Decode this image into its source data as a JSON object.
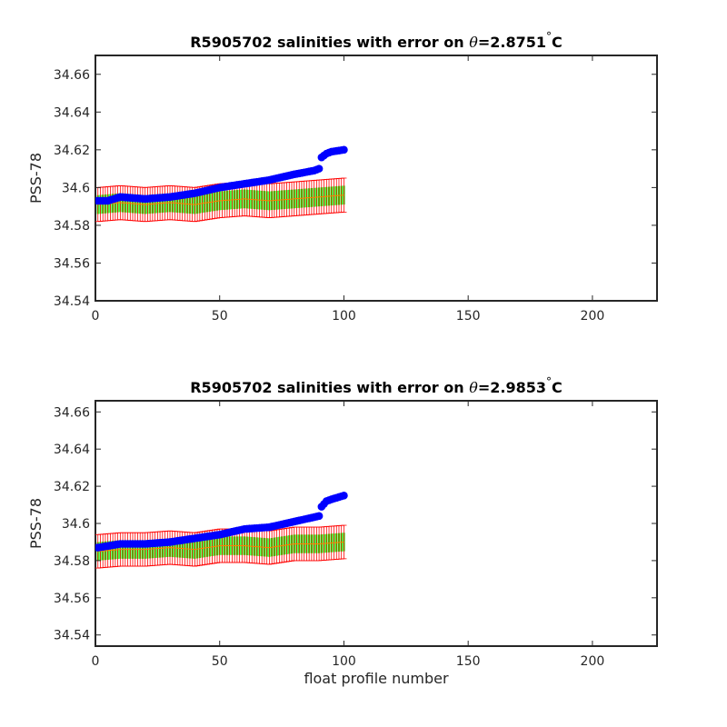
{
  "chart_data": [
    {
      "type": "scatter",
      "title_prefix": "R5905702 salinities with error on ",
      "title_symbol": "θ",
      "title_value": "=2.8751",
      "title_degree": "°",
      "title_unit": "C",
      "xlabel": "",
      "ylabel": "PSS-78",
      "xlim": [
        0,
        226
      ],
      "ylim": [
        34.54,
        34.67
      ],
      "xticks": [
        0,
        50,
        100,
        150,
        200
      ],
      "xtick_labels": [
        "0",
        "50",
        "100",
        "150",
        "200"
      ],
      "yticks": [
        34.54,
        34.56,
        34.58,
        34.6,
        34.62,
        34.64,
        34.66
      ],
      "ytick_labels": [
        "34.54",
        "34.56",
        "34.58",
        "34.6",
        "34.62",
        "34.64",
        "34.66"
      ],
      "grid": false,
      "profile_range": [
        1,
        100
      ],
      "blue_keypoints": [
        [
          1,
          34.593
        ],
        [
          5,
          34.593
        ],
        [
          10,
          34.595
        ],
        [
          20,
          34.594
        ],
        [
          30,
          34.595
        ],
        [
          40,
          34.597
        ],
        [
          50,
          34.6
        ],
        [
          60,
          34.602
        ],
        [
          70,
          34.604
        ],
        [
          80,
          34.607
        ],
        [
          88,
          34.609
        ],
        [
          90,
          34.61
        ],
        [
          91,
          34.616
        ],
        [
          93,
          34.618
        ],
        [
          95,
          34.619
        ],
        [
          100,
          34.62
        ]
      ],
      "mapped_keypoints": [
        [
          1,
          34.591
        ],
        [
          10,
          34.592
        ],
        [
          20,
          34.591
        ],
        [
          30,
          34.592
        ],
        [
          40,
          34.591
        ],
        [
          50,
          34.593
        ],
        [
          60,
          34.594
        ],
        [
          70,
          34.593
        ],
        [
          80,
          34.594
        ],
        [
          90,
          34.595
        ],
        [
          100,
          34.596
        ]
      ],
      "error_halfwidth": 0.009,
      "green_halfwidth": 0.005,
      "colors": {
        "calibrated": "#0000ff",
        "error": "#ff0000",
        "band": "#00ff00",
        "mapped_line": "#ff7f00"
      }
    },
    {
      "type": "scatter",
      "title_prefix": "R5905702 salinities with error on ",
      "title_symbol": "θ",
      "title_value": "=2.9853",
      "title_degree": "°",
      "title_unit": "C",
      "xlabel": "float profile number",
      "ylabel": "PSS-78",
      "xlim": [
        0,
        226
      ],
      "ylim": [
        34.534,
        34.666
      ],
      "xticks": [
        0,
        50,
        100,
        150,
        200
      ],
      "xtick_labels": [
        "0",
        "50",
        "100",
        "150",
        "200"
      ],
      "yticks": [
        34.54,
        34.56,
        34.58,
        34.6,
        34.62,
        34.64,
        34.66
      ],
      "ytick_labels": [
        "34.54",
        "34.56",
        "34.58",
        "34.6",
        "34.62",
        "34.64",
        "34.66"
      ],
      "grid": false,
      "profile_range": [
        1,
        100
      ],
      "blue_keypoints": [
        [
          1,
          34.587
        ],
        [
          10,
          34.589
        ],
        [
          20,
          34.589
        ],
        [
          30,
          34.59
        ],
        [
          40,
          34.592
        ],
        [
          50,
          34.594
        ],
        [
          60,
          34.597
        ],
        [
          70,
          34.598
        ],
        [
          80,
          34.601
        ],
        [
          90,
          34.604
        ],
        [
          91,
          34.609
        ],
        [
          93,
          34.612
        ],
        [
          95,
          34.613
        ],
        [
          100,
          34.615
        ]
      ],
      "mapped_keypoints": [
        [
          1,
          34.585
        ],
        [
          10,
          34.586
        ],
        [
          20,
          34.586
        ],
        [
          30,
          34.587
        ],
        [
          40,
          34.586
        ],
        [
          50,
          34.588
        ],
        [
          60,
          34.588
        ],
        [
          70,
          34.587
        ],
        [
          80,
          34.589
        ],
        [
          90,
          34.589
        ],
        [
          100,
          34.59
        ]
      ],
      "error_halfwidth": 0.009,
      "green_halfwidth": 0.005,
      "colors": {
        "calibrated": "#0000ff",
        "error": "#ff0000",
        "band": "#00ff00",
        "mapped_line": "#ff7f00"
      }
    }
  ]
}
